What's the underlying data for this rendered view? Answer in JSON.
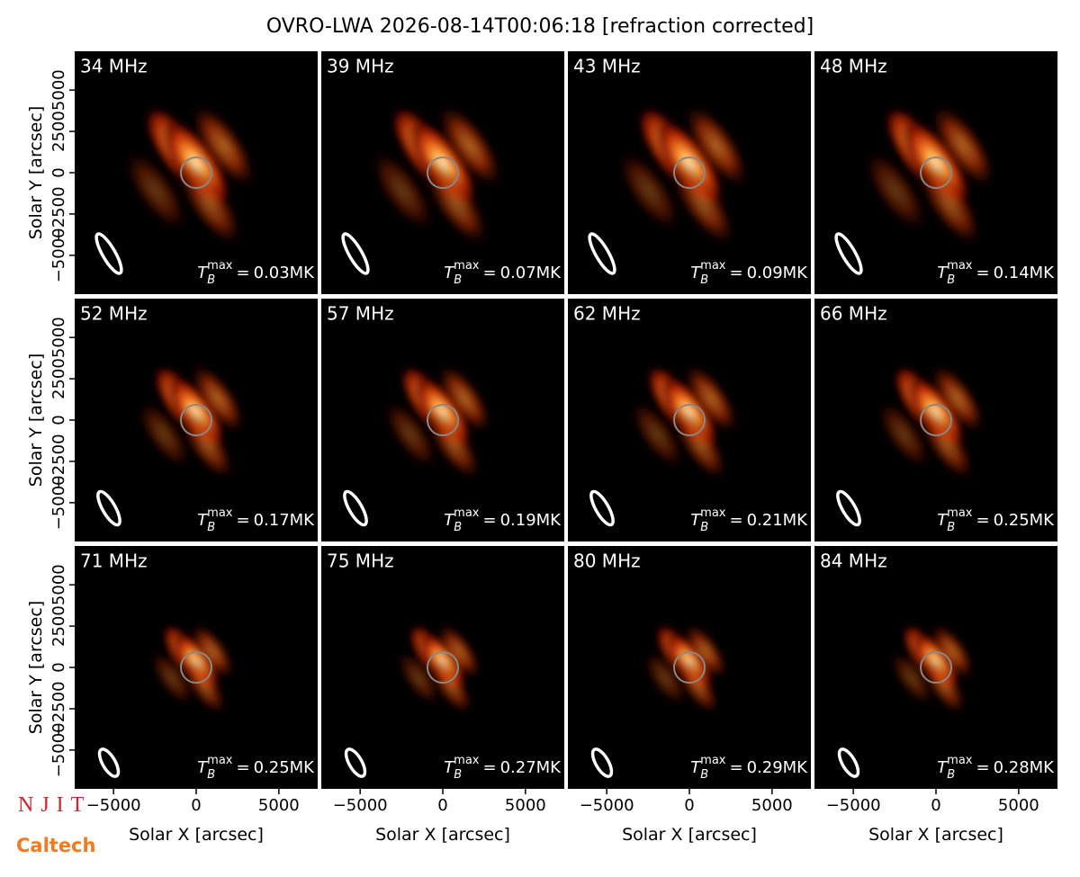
{
  "chart_data": {
    "type": "image-grid",
    "title": "OVRO-LWA 2026-08-14T00:06:18 [refraction corrected]",
    "xlabel": "Solar X [arcsec]",
    "ylabel": "Solar Y [arcsec]",
    "xlim": [
      -7350,
      7350
    ],
    "ylim": [
      -7350,
      7350
    ],
    "xticks": [
      {
        "value": -5000,
        "label": "−5000"
      },
      0,
      5000
    ],
    "yticks": [
      {
        "value": -5000,
        "label": "−5000"
      },
      {
        "value": -2500,
        "label": "−2500"
      },
      0,
      2500,
      5000
    ],
    "tb_symbol": {
      "base": "T",
      "sub": "B",
      "sup": "max",
      "relation": "="
    },
    "categories": [
      "34 MHz",
      "39 MHz",
      "43 MHz",
      "48 MHz",
      "52 MHz",
      "57 MHz",
      "62 MHz",
      "66 MHz",
      "71 MHz",
      "75 MHz",
      "80 MHz",
      "84 MHz"
    ],
    "values": [
      0.03,
      0.07,
      0.09,
      0.14,
      0.17,
      0.19,
      0.21,
      0.25,
      0.25,
      0.27,
      0.29,
      0.28
    ],
    "value_labels": [
      "0.03MK",
      "0.07MK",
      "0.09MK",
      "0.14MK",
      "0.17MK",
      "0.19MK",
      "0.21MK",
      "0.25MK",
      "0.25MK",
      "0.27MK",
      "0.29MK",
      "0.28MK"
    ],
    "logos": [
      "NJIT",
      "Caltech"
    ]
  }
}
